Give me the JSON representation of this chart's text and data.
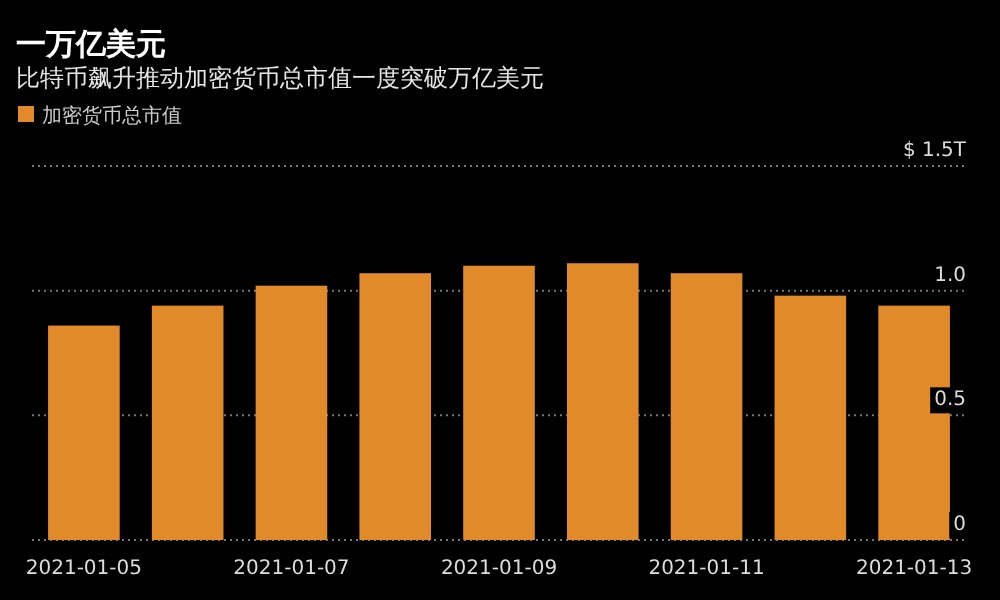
{
  "chart_data": {
    "type": "bar",
    "title": "一万亿美元",
    "subtitle": "比特币飙升推动加密货币总市值一度突破万亿美元",
    "categories": [
      "2021-01-05",
      null,
      "2021-01-07",
      null,
      "2021-01-09",
      null,
      "2021-01-11",
      null,
      "2021-01-13"
    ],
    "series": [
      {
        "name": "加密货币总市值",
        "color": "#e08a2a",
        "values": [
          0.86,
          0.94,
          1.02,
          1.07,
          1.1,
          1.11,
          1.07,
          0.98,
          0.94
        ]
      }
    ],
    "ylim": [
      0,
      1.5
    ],
    "yticks": [
      0,
      0.5,
      {
        "value": 1.0,
        "label": "1.0"
      },
      {
        "value": 1.5,
        "label": "$ 1.5T"
      }
    ],
    "grid": "y",
    "legend": "top left"
  }
}
